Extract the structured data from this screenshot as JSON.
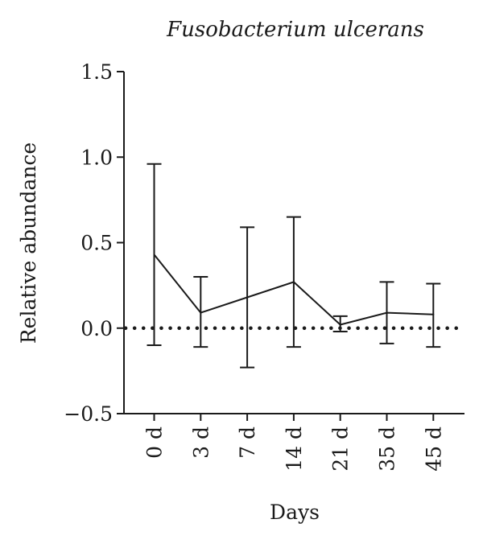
{
  "chart_data": {
    "type": "line",
    "title": "Fusobacterium ulcerans",
    "xlabel": "Days",
    "ylabel": "Relative abundance",
    "categories": [
      "0 d",
      "3 d",
      "7 d",
      "14 d",
      "21 d",
      "35 d",
      "45 d"
    ],
    "series": [
      {
        "values": [
          0.43,
          0.09,
          0.18,
          0.27,
          0.02,
          0.09,
          0.08
        ],
        "error_low": [
          -0.1,
          -0.11,
          -0.23,
          -0.11,
          -0.02,
          -0.09,
          -0.11
        ],
        "error_high": [
          0.96,
          0.3,
          0.59,
          0.65,
          0.07,
          0.27,
          0.26
        ],
        "color": "#1a1a1a"
      }
    ],
    "yticks": [
      "1.5",
      "1.0",
      "0.5",
      "0.0",
      "−0.5"
    ],
    "ytick_values": [
      1.5,
      1.0,
      0.5,
      0.0,
      -0.5
    ],
    "ylim": [
      -0.5,
      1.5
    ],
    "reference_line": {
      "y": 0.0,
      "style": "dotted"
    },
    "grid": false,
    "legend": "none"
  }
}
